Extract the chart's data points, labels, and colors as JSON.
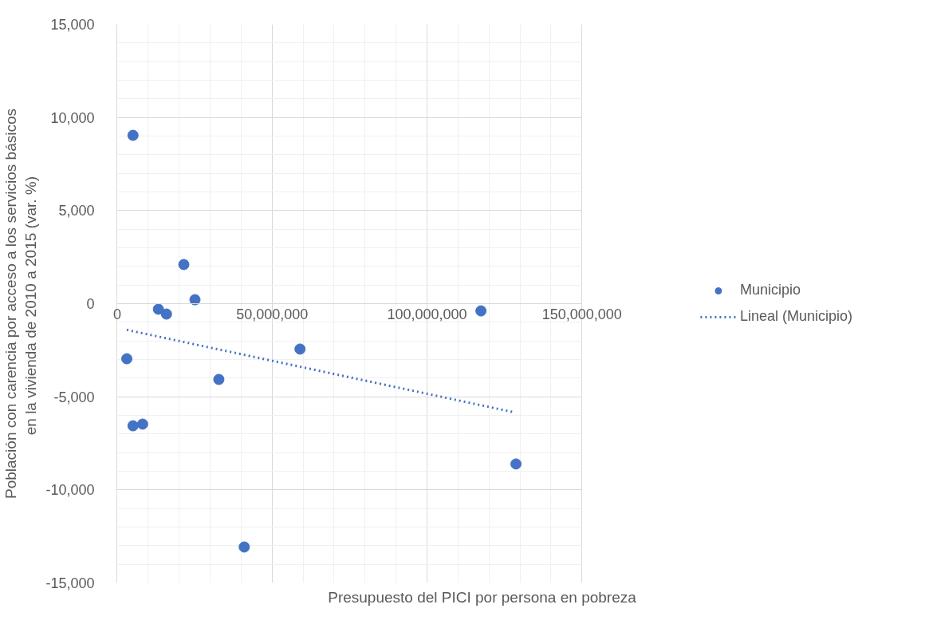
{
  "chart_data": {
    "type": "scatter",
    "xlabel": "Presupuesto del PICI por persona en pobreza",
    "ylabel": "Población con carencia por acceso a los servicios básicos\nen la vivienda de 2010 a 2015  (var. %)",
    "series": [
      {
        "name": "Municipio",
        "color": "#4472c4",
        "marker": "circle",
        "x": [
          3100000,
          5100000,
          5100000,
          8200000,
          13300000,
          15900000,
          21500000,
          25100000,
          32800000,
          41000000,
          59000000,
          117400000,
          128700000
        ],
        "values": [
          -2960,
          9040,
          -6560,
          -6470,
          -300,
          -560,
          2100,
          210,
          -4070,
          -13070,
          -2440,
          -390,
          -8610
        ]
      },
      {
        "name": "Lineal (Municipio)",
        "type": "line",
        "color": "#4472c4",
        "line_style": "dotted",
        "marker": "none",
        "x": [
          3100000,
          128000000
        ],
        "values": [
          -1410,
          -5830
        ]
      }
    ],
    "xlim": [
      0,
      150000000
    ],
    "xticks": [
      {
        "value": 0,
        "label": "0"
      },
      {
        "value": 50000000,
        "label": "50,000,000"
      },
      {
        "value": 100000000,
        "label": "100,000,000"
      },
      {
        "value": 150000000,
        "label": "150,000,000"
      }
    ],
    "ylim": [
      -15000,
      15000
    ],
    "yticks": [
      {
        "value": -15000,
        "label": "-15,000"
      },
      {
        "value": -10000,
        "label": "-10,000"
      },
      {
        "value": -5000,
        "label": "-5,000"
      },
      {
        "value": 0,
        "label": "0"
      },
      {
        "value": 5000,
        "label": "5,000"
      },
      {
        "value": 10000,
        "label": "10,000"
      },
      {
        "value": 15000,
        "label": "15,000"
      }
    ],
    "grid": true,
    "legend": "right"
  }
}
